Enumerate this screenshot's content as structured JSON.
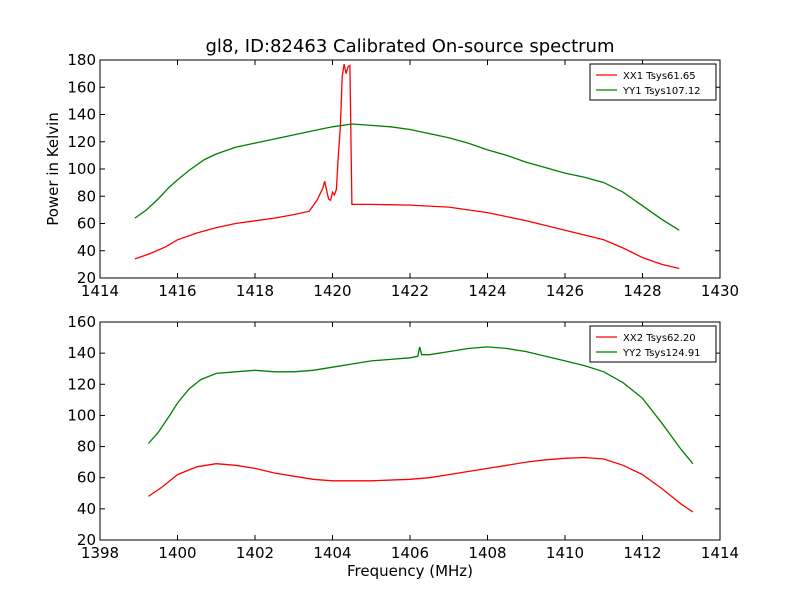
{
  "figure_title": "gl8, ID:82463 Calibrated On-source spectrum",
  "shared_xlabel": "Frequency (MHz)",
  "chart_data": [
    {
      "type": "line",
      "title": "gl8, ID:82463 Calibrated On-source spectrum",
      "xlabel": "",
      "ylabel": "Power in Kelvin",
      "xlim": [
        1414,
        1430
      ],
      "ylim": [
        20,
        180
      ],
      "xticks": [
        "1414",
        "1416",
        "1418",
        "1420",
        "1422",
        "1424",
        "1426",
        "1428",
        "1430"
      ],
      "yticks": [
        "20",
        "40",
        "60",
        "80",
        "100",
        "120",
        "140",
        "160",
        "180"
      ],
      "grid": false,
      "legend_position": "top-right",
      "series": [
        {
          "name": "XX1 Tsys61.65",
          "color": "#ff0000",
          "points": [
            [
              1414.9,
              34
            ],
            [
              1415.3,
              38
            ],
            [
              1415.7,
              43
            ],
            [
              1416,
              48
            ],
            [
              1416.5,
              53
            ],
            [
              1417,
              57
            ],
            [
              1417.5,
              60
            ],
            [
              1418,
              62
            ],
            [
              1418.5,
              64
            ],
            [
              1419,
              66.5
            ],
            [
              1419.4,
              69
            ],
            [
              1419.5,
              73
            ],
            [
              1419.6,
              77
            ],
            [
              1419.75,
              86
            ],
            [
              1419.8,
              91
            ],
            [
              1419.85,
              84
            ],
            [
              1419.9,
              78
            ],
            [
              1419.95,
              77
            ],
            [
              1420.0,
              83
            ],
            [
              1420.05,
              81
            ],
            [
              1420.1,
              85
            ],
            [
              1420.15,
              110
            ],
            [
              1420.2,
              130
            ],
            [
              1420.25,
              168
            ],
            [
              1420.3,
              177
            ],
            [
              1420.35,
              170
            ],
            [
              1420.4,
              175
            ],
            [
              1420.45,
              176
            ],
            [
              1420.5,
              74
            ],
            [
              1421,
              74
            ],
            [
              1422,
              73.5
            ],
            [
              1423,
              72
            ],
            [
              1424,
              68
            ],
            [
              1425,
              62
            ],
            [
              1426,
              55
            ],
            [
              1427,
              48
            ],
            [
              1427.5,
              42
            ],
            [
              1428,
              35
            ],
            [
              1428.5,
              30
            ],
            [
              1428.95,
              27
            ]
          ]
        },
        {
          "name": "YY1 Tsys107.12",
          "color": "#008000",
          "points": [
            [
              1414.9,
              64
            ],
            [
              1415.2,
              70
            ],
            [
              1415.5,
              78
            ],
            [
              1415.8,
              87
            ],
            [
              1416,
              92
            ],
            [
              1416.3,
              99
            ],
            [
              1416.7,
              107
            ],
            [
              1417,
              111
            ],
            [
              1417.5,
              116
            ],
            [
              1418,
              119
            ],
            [
              1418.5,
              122
            ],
            [
              1419,
              125
            ],
            [
              1419.5,
              128
            ],
            [
              1420,
              131
            ],
            [
              1420.5,
              133
            ],
            [
              1421,
              132
            ],
            [
              1421.5,
              131
            ],
            [
              1422,
              129
            ],
            [
              1422.5,
              126
            ],
            [
              1423,
              123
            ],
            [
              1423.5,
              119
            ],
            [
              1424,
              114
            ],
            [
              1424.5,
              110
            ],
            [
              1425,
              105
            ],
            [
              1425.5,
              101
            ],
            [
              1426,
              97
            ],
            [
              1426.5,
              94
            ],
            [
              1427,
              90
            ],
            [
              1427.5,
              83
            ],
            [
              1428,
              73
            ],
            [
              1428.5,
              63
            ],
            [
              1428.95,
              55
            ]
          ]
        }
      ]
    },
    {
      "type": "line",
      "title": "",
      "xlabel": "Frequency (MHz)",
      "ylabel": "",
      "xlim": [
        1398,
        1414
      ],
      "ylim": [
        20,
        160
      ],
      "xticks": [
        "1398",
        "1400",
        "1402",
        "1404",
        "1406",
        "1408",
        "1410",
        "1412",
        "1414"
      ],
      "yticks": [
        "20",
        "40",
        "60",
        "80",
        "100",
        "120",
        "140",
        "160"
      ],
      "grid": false,
      "legend_position": "top-right",
      "series": [
        {
          "name": "XX2 Tsys62.20",
          "color": "#ff0000",
          "points": [
            [
              1399.25,
              48
            ],
            [
              1399.6,
              54
            ],
            [
              1400,
              62
            ],
            [
              1400.5,
              67
            ],
            [
              1401,
              69
            ],
            [
              1401.5,
              68
            ],
            [
              1402,
              66
            ],
            [
              1402.5,
              63
            ],
            [
              1403,
              61
            ],
            [
              1403.5,
              59
            ],
            [
              1404,
              58
            ],
            [
              1405,
              58
            ],
            [
              1406,
              59
            ],
            [
              1406.5,
              60
            ],
            [
              1407,
              62
            ],
            [
              1407.5,
              64
            ],
            [
              1408,
              66
            ],
            [
              1408.5,
              68
            ],
            [
              1409,
              70
            ],
            [
              1409.5,
              71.5
            ],
            [
              1410,
              72.5
            ],
            [
              1410.5,
              73
            ],
            [
              1411,
              72
            ],
            [
              1411.5,
              68
            ],
            [
              1412,
              62
            ],
            [
              1412.5,
              53
            ],
            [
              1413,
              43
            ],
            [
              1413.3,
              38
            ]
          ]
        },
        {
          "name": "YY2 Tsys124.91",
          "color": "#008000",
          "points": [
            [
              1399.25,
              82
            ],
            [
              1399.5,
              89
            ],
            [
              1399.8,
              100
            ],
            [
              1400,
              108
            ],
            [
              1400.3,
              117
            ],
            [
              1400.6,
              123
            ],
            [
              1401,
              127
            ],
            [
              1401.5,
              128
            ],
            [
              1402,
              129
            ],
            [
              1402.5,
              128
            ],
            [
              1403,
              128
            ],
            [
              1403.5,
              129
            ],
            [
              1404,
              131
            ],
            [
              1404.5,
              133
            ],
            [
              1405,
              135
            ],
            [
              1405.5,
              136
            ],
            [
              1406,
              137
            ],
            [
              1406.2,
              138
            ],
            [
              1406.25,
              144
            ],
            [
              1406.3,
              139
            ],
            [
              1406.5,
              139
            ],
            [
              1407,
              141
            ],
            [
              1407.5,
              143
            ],
            [
              1408,
              144
            ],
            [
              1408.5,
              143
            ],
            [
              1409,
              141
            ],
            [
              1409.5,
              138
            ],
            [
              1410,
              135
            ],
            [
              1410.5,
              132
            ],
            [
              1411,
              128
            ],
            [
              1411.5,
              121
            ],
            [
              1412,
              111
            ],
            [
              1412.5,
              95
            ],
            [
              1413,
              78
            ],
            [
              1413.3,
              69
            ]
          ]
        }
      ]
    }
  ]
}
